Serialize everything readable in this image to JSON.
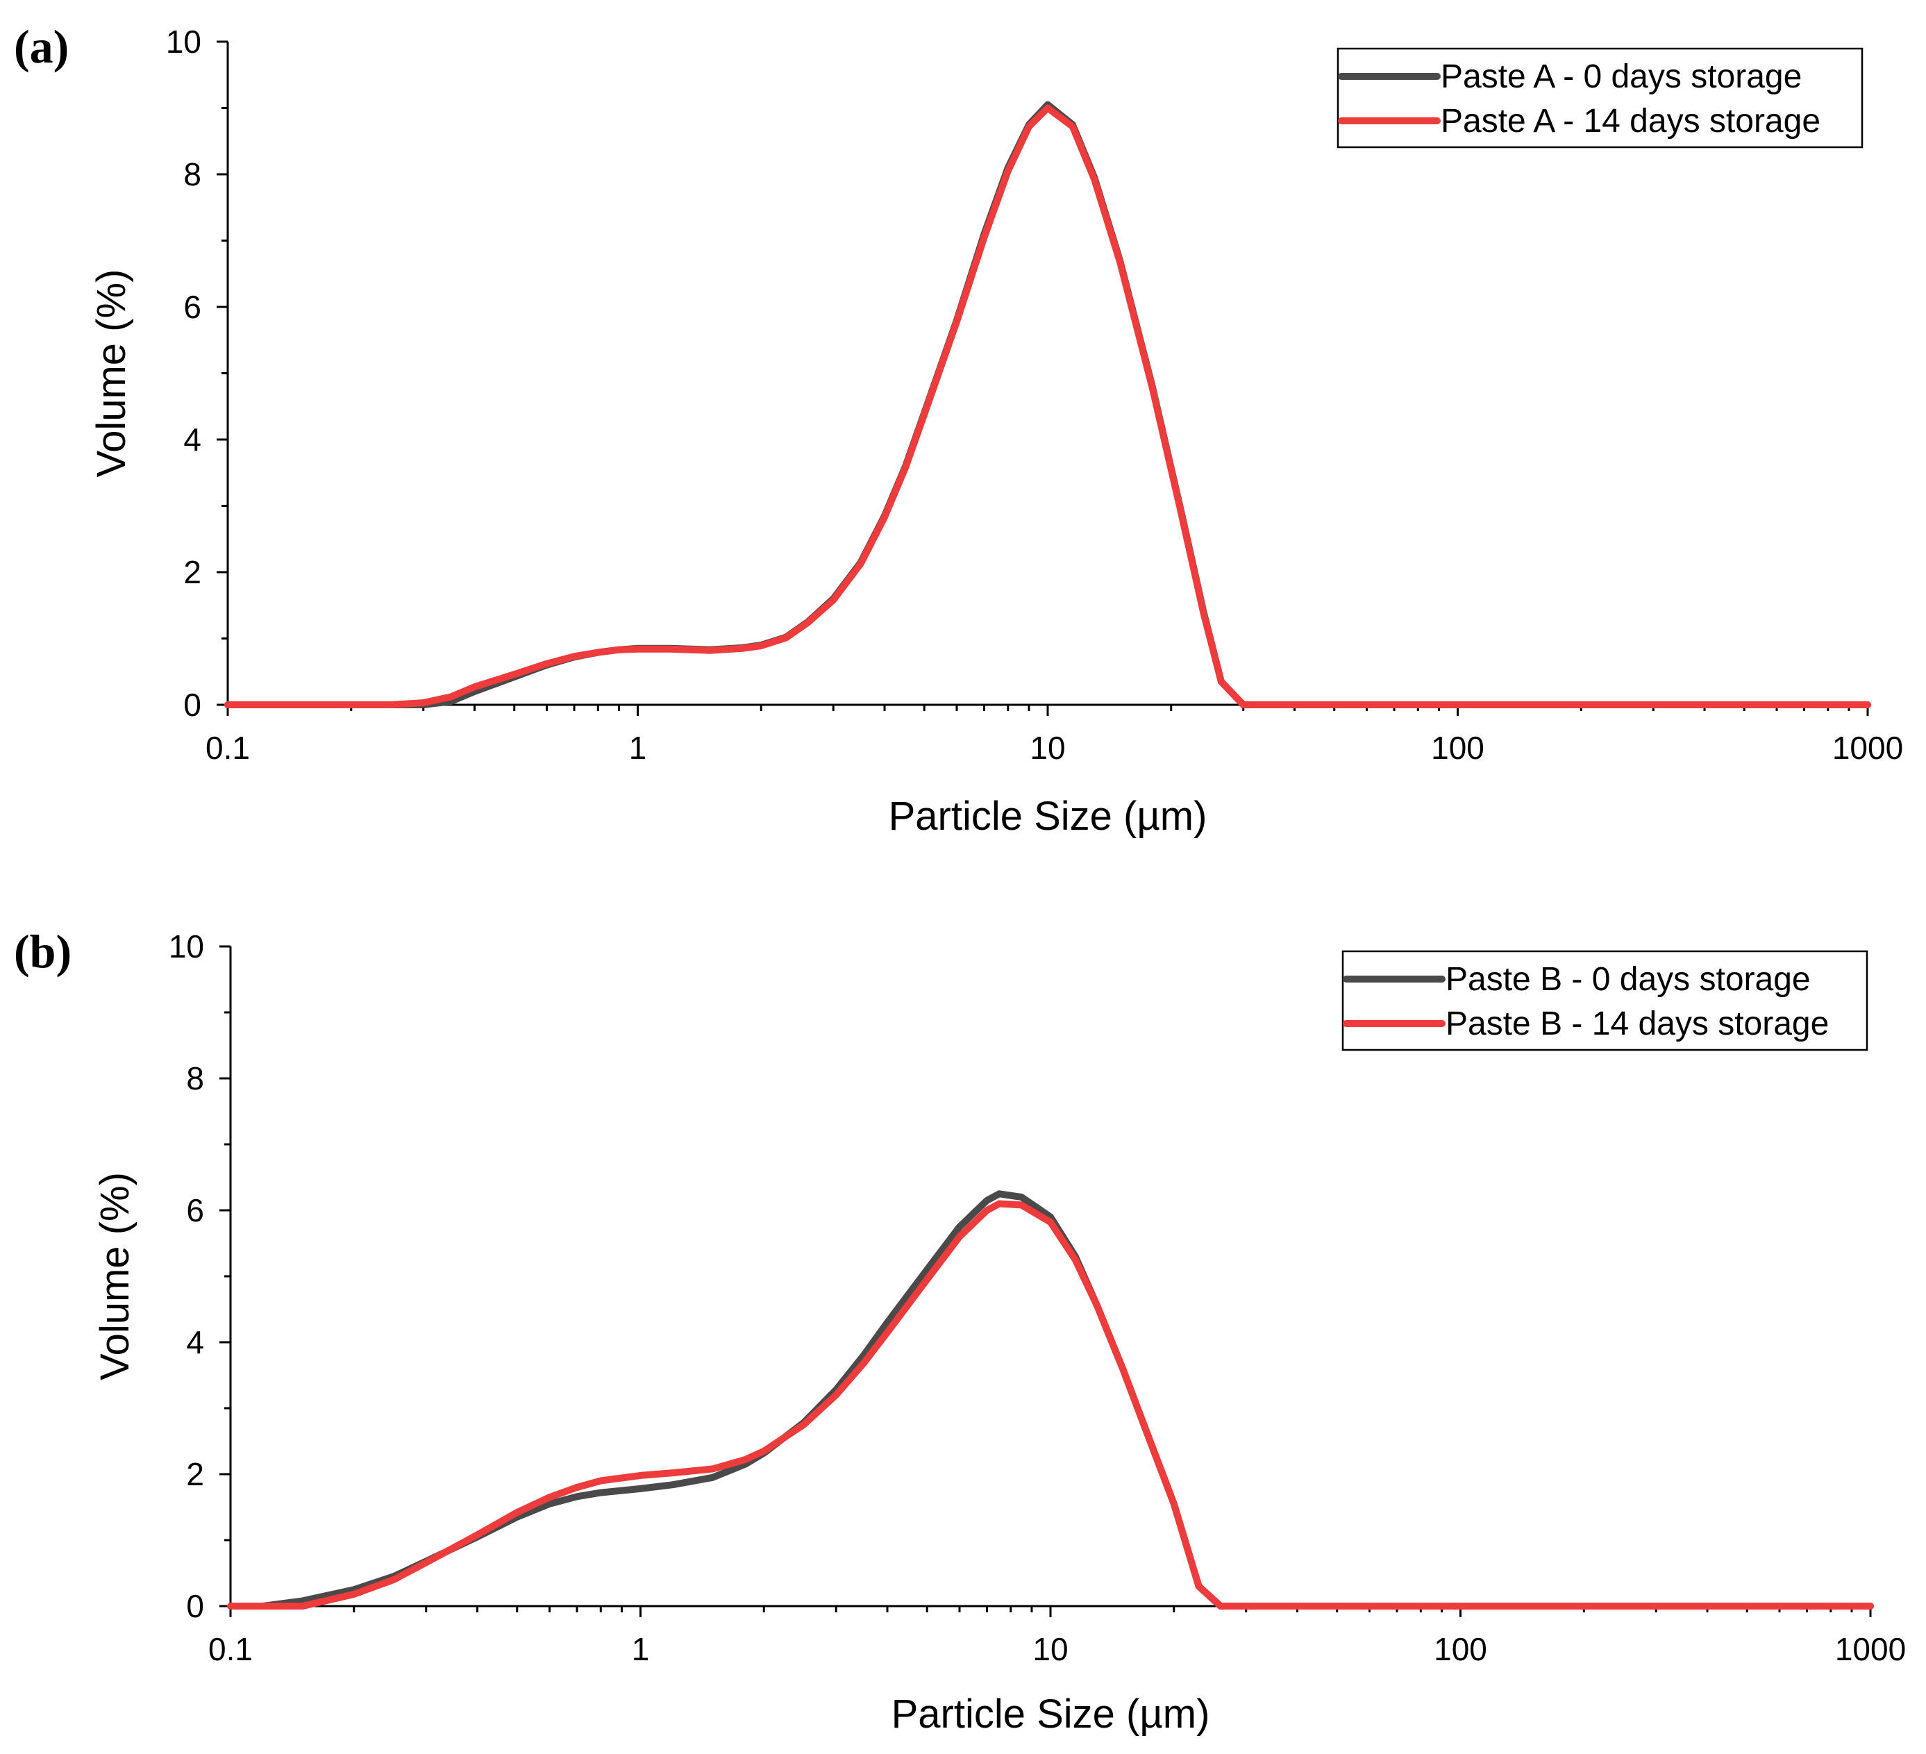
{
  "colors": {
    "series_0_days": "#4a4a4a",
    "series_14_days": "#ee3b3b"
  },
  "chart_data": [
    {
      "type": "line",
      "panel_label": "(a)",
      "xlabel": "Particle Size (µm)",
      "ylabel": "Volume (%)",
      "xscale": "log",
      "xlim": [
        0.1,
        1000
      ],
      "ylim": [
        0,
        10
      ],
      "x_ticks": [
        0.1,
        1,
        10,
        100,
        1000
      ],
      "x_tick_labels": [
        "0.1",
        "1",
        "10",
        "100",
        "1000"
      ],
      "y_ticks": [
        0,
        2,
        4,
        6,
        8,
        10
      ],
      "y_tick_labels": [
        "0",
        "2",
        "4",
        "6",
        "8",
        "10"
      ],
      "legend_position": "top-right",
      "series": [
        {
          "name": "Paste A - 0 days storage",
          "color": "#4a4a4a",
          "points": [
            [
              0.1,
              0
            ],
            [
              0.25,
              0
            ],
            [
              0.3,
              0
            ],
            [
              0.35,
              0.05
            ],
            [
              0.4,
              0.2
            ],
            [
              0.5,
              0.42
            ],
            [
              0.6,
              0.6
            ],
            [
              0.7,
              0.72
            ],
            [
              0.8,
              0.79
            ],
            [
              0.9,
              0.83
            ],
            [
              1.0,
              0.85
            ],
            [
              1.2,
              0.85
            ],
            [
              1.5,
              0.83
            ],
            [
              1.8,
              0.86
            ],
            [
              2.0,
              0.9
            ],
            [
              2.3,
              1.02
            ],
            [
              2.6,
              1.25
            ],
            [
              3.0,
              1.6
            ],
            [
              3.5,
              2.15
            ],
            [
              4.0,
              2.85
            ],
            [
              4.5,
              3.6
            ],
            [
              5.0,
              4.4
            ],
            [
              6.0,
              5.8
            ],
            [
              7.0,
              7.1
            ],
            [
              8.0,
              8.1
            ],
            [
              9.0,
              8.75
            ],
            [
              10.0,
              9.05
            ],
            [
              11.5,
              8.75
            ],
            [
              13.0,
              7.95
            ],
            [
              15.0,
              6.7
            ],
            [
              18.0,
              4.8
            ],
            [
              21.0,
              3.0
            ],
            [
              24.0,
              1.4
            ],
            [
              26.5,
              0.35
            ],
            [
              30,
              0
            ],
            [
              1000,
              0
            ]
          ]
        },
        {
          "name": "Paste A - 14 days storage",
          "color": "#ee3b3b",
          "points": [
            [
              0.1,
              0
            ],
            [
              0.25,
              0
            ],
            [
              0.3,
              0.03
            ],
            [
              0.35,
              0.12
            ],
            [
              0.4,
              0.27
            ],
            [
              0.5,
              0.46
            ],
            [
              0.6,
              0.62
            ],
            [
              0.7,
              0.73
            ],
            [
              0.8,
              0.79
            ],
            [
              0.9,
              0.83
            ],
            [
              1.0,
              0.84
            ],
            [
              1.2,
              0.84
            ],
            [
              1.5,
              0.82
            ],
            [
              1.8,
              0.85
            ],
            [
              2.0,
              0.89
            ],
            [
              2.3,
              1.01
            ],
            [
              2.6,
              1.24
            ],
            [
              3.0,
              1.58
            ],
            [
              3.5,
              2.13
            ],
            [
              4.0,
              2.83
            ],
            [
              4.5,
              3.58
            ],
            [
              5.0,
              4.38
            ],
            [
              6.0,
              5.78
            ],
            [
              7.0,
              7.05
            ],
            [
              8.0,
              8.05
            ],
            [
              9.0,
              8.72
            ],
            [
              10.0,
              9.0
            ],
            [
              11.5,
              8.72
            ],
            [
              13.0,
              7.92
            ],
            [
              15.0,
              6.68
            ],
            [
              18.0,
              4.78
            ],
            [
              21.0,
              2.98
            ],
            [
              24.0,
              1.38
            ],
            [
              26.5,
              0.35
            ],
            [
              30,
              0
            ],
            [
              1000,
              0
            ]
          ]
        }
      ]
    },
    {
      "type": "line",
      "panel_label": "(b)",
      "xlabel": "Particle Size (µm)",
      "ylabel": "Volume (%)",
      "xscale": "log",
      "xlim": [
        0.1,
        1000
      ],
      "ylim": [
        0,
        10
      ],
      "x_ticks": [
        0.1,
        1,
        10,
        100,
        1000
      ],
      "x_tick_labels": [
        "0.1",
        "1",
        "10",
        "100",
        "1000"
      ],
      "y_ticks": [
        0,
        2,
        4,
        6,
        8,
        10
      ],
      "y_tick_labels": [
        "0",
        "2",
        "4",
        "6",
        "8",
        "10"
      ],
      "legend_position": "top-right",
      "series": [
        {
          "name": "Paste B - 0 days storage",
          "color": "#4a4a4a",
          "points": [
            [
              0.1,
              0
            ],
            [
              0.12,
              0
            ],
            [
              0.15,
              0.08
            ],
            [
              0.2,
              0.25
            ],
            [
              0.25,
              0.45
            ],
            [
              0.3,
              0.68
            ],
            [
              0.4,
              1.05
            ],
            [
              0.5,
              1.35
            ],
            [
              0.6,
              1.55
            ],
            [
              0.7,
              1.66
            ],
            [
              0.8,
              1.72
            ],
            [
              1.0,
              1.78
            ],
            [
              1.2,
              1.84
            ],
            [
              1.5,
              1.95
            ],
            [
              1.8,
              2.15
            ],
            [
              2.0,
              2.32
            ],
            [
              2.5,
              2.78
            ],
            [
              3.0,
              3.28
            ],
            [
              3.5,
              3.8
            ],
            [
              4.0,
              4.3
            ],
            [
              5.0,
              5.1
            ],
            [
              6.0,
              5.75
            ],
            [
              7.0,
              6.15
            ],
            [
              7.5,
              6.25
            ],
            [
              8.5,
              6.2
            ],
            [
              10.0,
              5.9
            ],
            [
              11.5,
              5.3
            ],
            [
              13.0,
              4.55
            ],
            [
              15.0,
              3.6
            ],
            [
              17.5,
              2.5
            ],
            [
              20.0,
              1.55
            ],
            [
              23.0,
              0.3
            ],
            [
              26,
              0
            ],
            [
              1000,
              0
            ]
          ]
        },
        {
          "name": "Paste B - 14 days storage",
          "color": "#ee3b3b",
          "points": [
            [
              0.1,
              0
            ],
            [
              0.15,
              0
            ],
            [
              0.2,
              0.18
            ],
            [
              0.25,
              0.4
            ],
            [
              0.3,
              0.66
            ],
            [
              0.4,
              1.08
            ],
            [
              0.5,
              1.42
            ],
            [
              0.6,
              1.65
            ],
            [
              0.7,
              1.8
            ],
            [
              0.8,
              1.9
            ],
            [
              1.0,
              1.98
            ],
            [
              1.2,
              2.02
            ],
            [
              1.5,
              2.08
            ],
            [
              1.8,
              2.22
            ],
            [
              2.0,
              2.35
            ],
            [
              2.5,
              2.75
            ],
            [
              3.0,
              3.2
            ],
            [
              3.5,
              3.68
            ],
            [
              4.0,
              4.15
            ],
            [
              5.0,
              4.95
            ],
            [
              6.0,
              5.6
            ],
            [
              7.0,
              6.0
            ],
            [
              7.5,
              6.1
            ],
            [
              8.5,
              6.08
            ],
            [
              10.0,
              5.82
            ],
            [
              11.5,
              5.25
            ],
            [
              13.0,
              4.55
            ],
            [
              15.0,
              3.6
            ],
            [
              17.5,
              2.5
            ],
            [
              20.0,
              1.55
            ],
            [
              23.0,
              0.3
            ],
            [
              26,
              0
            ],
            [
              1000,
              0
            ]
          ]
        }
      ]
    }
  ]
}
